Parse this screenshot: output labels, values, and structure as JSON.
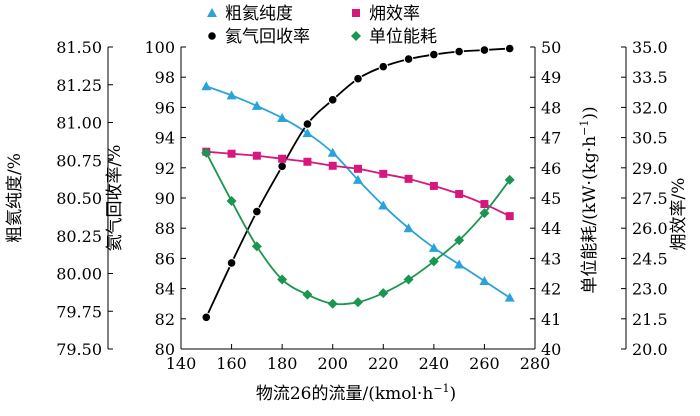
{
  "chart_data": {
    "type": "line",
    "x": [
      150,
      160,
      170,
      180,
      190,
      200,
      210,
      220,
      230,
      240,
      250,
      260,
      270
    ],
    "xlabel": "物流26的流量/(kmol·h",
    "xlabel_sup": "−1",
    "xlabel_end": ")",
    "xlim": [
      140,
      280
    ],
    "xticks": [
      140,
      160,
      180,
      200,
      220,
      240,
      260,
      280
    ],
    "axes": {
      "purity": {
        "label": "粗氦纯度/%",
        "lim": [
          79.5,
          81.5
        ],
        "ticks": [
          "79.50",
          "79.75",
          "80.00",
          "80.25",
          "80.50",
          "80.75",
          "81.00",
          "81.25",
          "81.50"
        ]
      },
      "recovery": {
        "label": "氦气回收率/%",
        "lim": [
          80,
          100
        ],
        "ticks": [
          "80",
          "82",
          "84",
          "86",
          "88",
          "90",
          "92",
          "94",
          "96",
          "98",
          "100"
        ]
      },
      "energy": {
        "label": "单位能耗/(kW·(kg·h",
        "label_sup": "−1",
        "label_end": "))",
        "lim": [
          40,
          50
        ],
        "ticks": [
          "40",
          "41",
          "42",
          "43",
          "44",
          "45",
          "46",
          "47",
          "48",
          "49",
          "50"
        ]
      },
      "exergy": {
        "label": "㶲效率/%",
        "lim": [
          20,
          35
        ],
        "ticks": [
          "20.0",
          "21.5",
          "23.0",
          "24.5",
          "26.0",
          "27.5",
          "29.0",
          "30.5",
          "32.0",
          "33.5",
          "35.0"
        ]
      }
    },
    "series": [
      {
        "name": "粗氦纯度",
        "axis": "purity",
        "color": "#29a3d9",
        "marker": "triangle",
        "values": [
          81.24,
          81.18,
          81.11,
          81.03,
          80.93,
          80.8,
          80.62,
          80.45,
          80.3,
          80.17,
          80.06,
          79.95,
          79.84
        ]
      },
      {
        "name": "氦气回收率",
        "axis": "recovery",
        "color": "#000000",
        "marker": "circle",
        "values": [
          82.1,
          85.7,
          89.1,
          92.1,
          94.9,
          96.5,
          97.9,
          98.7,
          99.2,
          99.5,
          99.7,
          99.8,
          99.9
        ]
      },
      {
        "name": "㶲效率",
        "axis": "exergy",
        "color": "#d6187c",
        "marker": "square",
        "values": [
          29.8,
          29.7,
          29.6,
          29.45,
          29.3,
          29.1,
          28.95,
          28.7,
          28.45,
          28.1,
          27.7,
          27.2,
          26.6
        ]
      },
      {
        "name": "单位能耗",
        "axis": "energy",
        "color": "#1a9650",
        "marker": "diamond",
        "values": [
          46.5,
          44.9,
          43.4,
          42.3,
          41.8,
          41.5,
          41.55,
          41.85,
          42.3,
          42.9,
          43.6,
          44.5,
          45.6
        ]
      }
    ],
    "legend": {
      "placement": "top",
      "columns": 2,
      "order": [
        "粗氦纯度",
        "㶲效率",
        "氦气回收率",
        "单位能耗"
      ]
    },
    "grid": false
  }
}
